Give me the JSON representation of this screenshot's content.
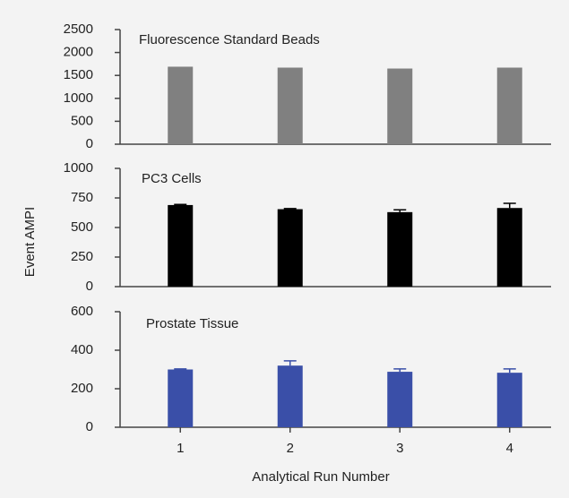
{
  "chart_data": [
    {
      "type": "bar",
      "title": "Fluorescence Standard Beads",
      "values": [
        1690,
        1670,
        1650,
        1670
      ],
      "color": "#808080",
      "ylim": [
        0,
        2500
      ],
      "yticks": [
        0,
        500,
        1000,
        1500,
        2000,
        2500
      ]
    },
    {
      "type": "bar",
      "title": "PC3 Cells",
      "values": [
        690,
        655,
        630,
        665
      ],
      "errors": [
        5,
        5,
        20,
        40
      ],
      "color": "#000000",
      "ylim": [
        0,
        1000
      ],
      "yticks": [
        0,
        250,
        500,
        750,
        1000
      ]
    },
    {
      "type": "bar",
      "title": "Prostate Tissue",
      "categories": [
        "1",
        "2",
        "3",
        "4"
      ],
      "values": [
        300,
        320,
        288,
        283
      ],
      "errors": [
        3,
        25,
        15,
        20
      ],
      "color": "#3a4fa8",
      "ylim": [
        0,
        600
      ],
      "yticks": [
        0,
        200,
        400,
        600
      ]
    }
  ],
  "ylabel": "Event AMPI",
  "xlabel": "Analytical Run Number"
}
